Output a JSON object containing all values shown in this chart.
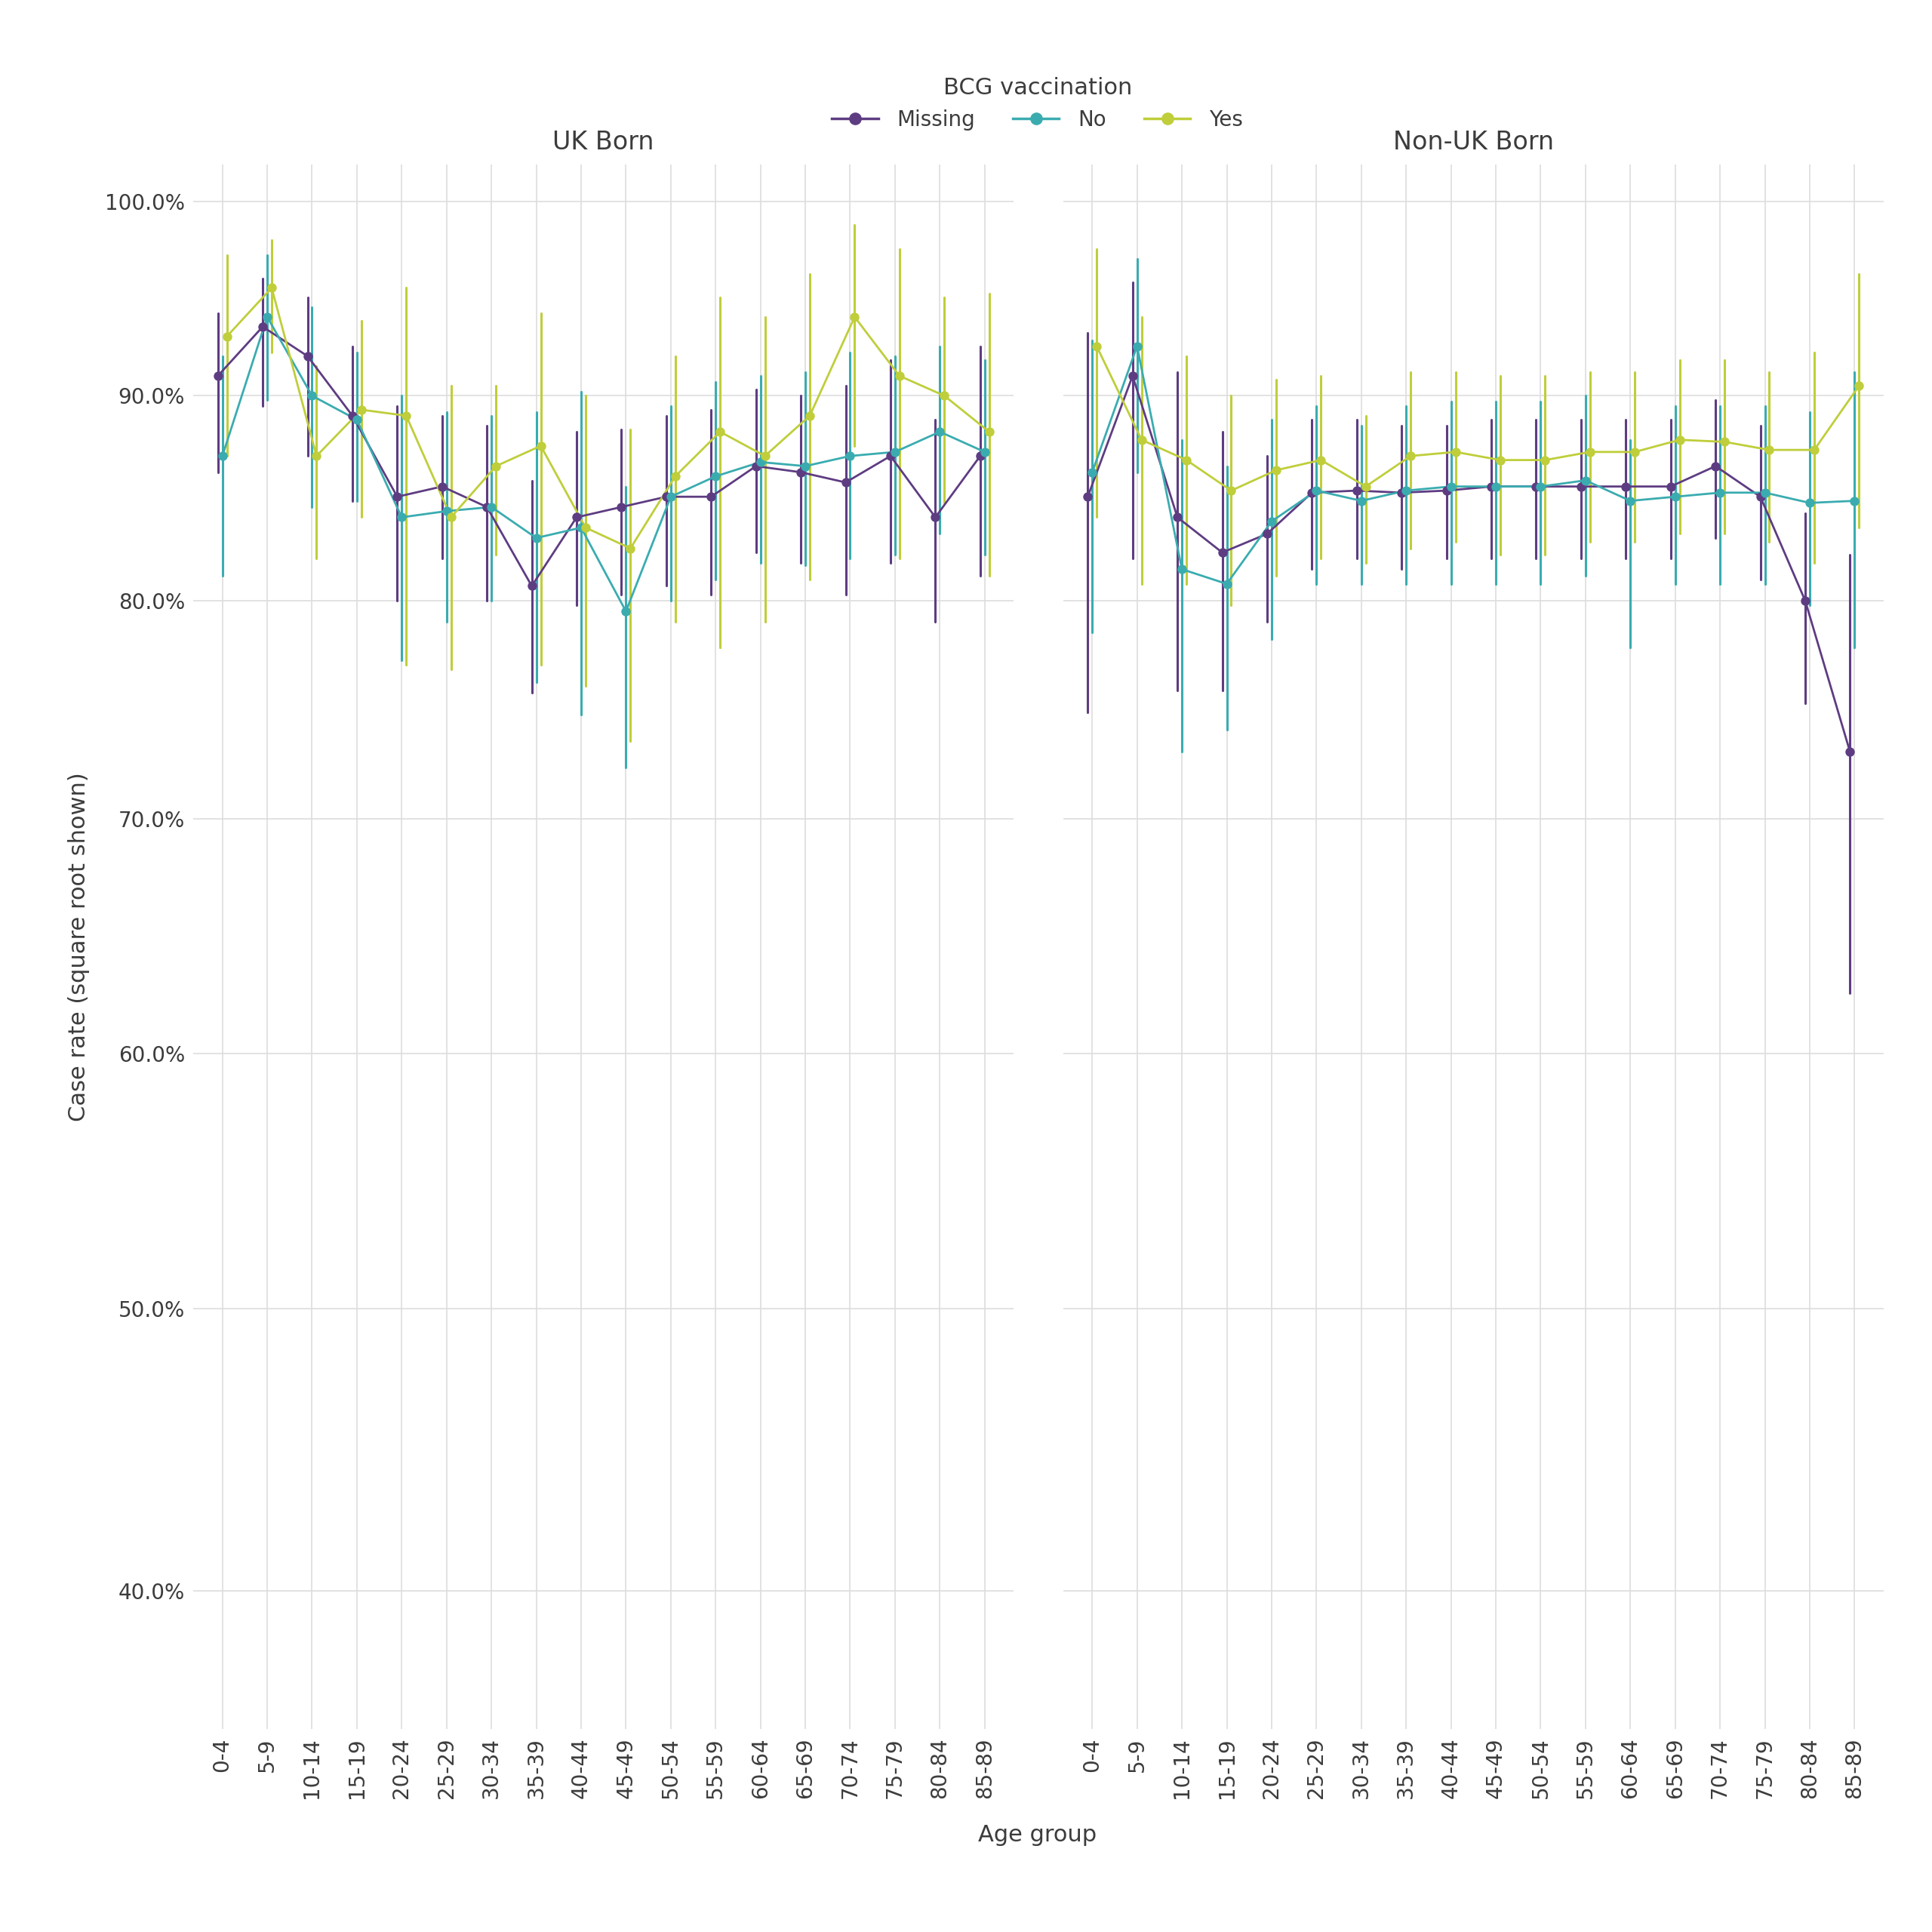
{
  "age_groups": [
    "0-4",
    "5-9",
    "10-14",
    "15-19",
    "20-24",
    "25-29",
    "30-34",
    "35-39",
    "40-44",
    "45-49",
    "50-54",
    "55-59",
    "60-64",
    "65-69",
    "70-74",
    "75-79",
    "80-84",
    "85-89"
  ],
  "panels": [
    "UK Born",
    "Non-UK Born"
  ],
  "colors": {
    "Missing": "#5E3C82",
    "No": "#3AACB0",
    "Yes": "#BFCE3A"
  },
  "UK Born": {
    "Missing": {
      "est": [
        0.91,
        0.935,
        0.92,
        0.89,
        0.85,
        0.855,
        0.845,
        0.807,
        0.84,
        0.845,
        0.85,
        0.85,
        0.865,
        0.862,
        0.857,
        0.87,
        0.84,
        0.87
      ],
      "lo": [
        0.862,
        0.895,
        0.87,
        0.848,
        0.8,
        0.82,
        0.8,
        0.757,
        0.798,
        0.803,
        0.807,
        0.803,
        0.823,
        0.818,
        0.803,
        0.818,
        0.79,
        0.812
      ],
      "hi": [
        0.942,
        0.96,
        0.95,
        0.925,
        0.895,
        0.89,
        0.885,
        0.858,
        0.882,
        0.883,
        0.89,
        0.893,
        0.903,
        0.9,
        0.905,
        0.918,
        0.888,
        0.925
      ]
    },
    "No": {
      "est": [
        0.87,
        0.94,
        0.9,
        0.888,
        0.84,
        0.843,
        0.845,
        0.83,
        0.835,
        0.795,
        0.85,
        0.86,
        0.867,
        0.865,
        0.87,
        0.872,
        0.882,
        0.872
      ],
      "lo": [
        0.812,
        0.898,
        0.845,
        0.848,
        0.772,
        0.79,
        0.8,
        0.762,
        0.747,
        0.723,
        0.8,
        0.81,
        0.818,
        0.817,
        0.82,
        0.822,
        0.832,
        0.822
      ],
      "hi": [
        0.92,
        0.972,
        0.945,
        0.922,
        0.9,
        0.892,
        0.89,
        0.892,
        0.902,
        0.855,
        0.895,
        0.907,
        0.91,
        0.912,
        0.922,
        0.92,
        0.925,
        0.918
      ]
    },
    "Yes": {
      "est": [
        0.93,
        0.955,
        0.87,
        0.893,
        0.89,
        0.84,
        0.865,
        0.875,
        0.835,
        0.825,
        0.86,
        0.882,
        0.87,
        0.89,
        0.94,
        0.91,
        0.9,
        0.882
      ],
      "lo": [
        0.87,
        0.922,
        0.82,
        0.84,
        0.77,
        0.768,
        0.822,
        0.77,
        0.76,
        0.735,
        0.79,
        0.778,
        0.79,
        0.81,
        0.875,
        0.82,
        0.847,
        0.812
      ],
      "hi": [
        0.972,
        0.98,
        0.915,
        0.938,
        0.955,
        0.905,
        0.905,
        0.942,
        0.9,
        0.883,
        0.92,
        0.95,
        0.94,
        0.962,
        0.988,
        0.975,
        0.95,
        0.952
      ]
    }
  },
  "Non-UK Born": {
    "Missing": {
      "est": [
        0.85,
        0.91,
        0.84,
        0.823,
        0.832,
        0.852,
        0.853,
        0.852,
        0.853,
        0.855,
        0.855,
        0.855,
        0.855,
        0.855,
        0.865,
        0.85,
        0.8,
        0.73
      ],
      "lo": [
        0.748,
        0.82,
        0.758,
        0.758,
        0.79,
        0.815,
        0.82,
        0.815,
        0.82,
        0.82,
        0.82,
        0.82,
        0.82,
        0.82,
        0.83,
        0.81,
        0.752,
        0.625
      ],
      "hi": [
        0.932,
        0.958,
        0.912,
        0.882,
        0.87,
        0.888,
        0.888,
        0.885,
        0.885,
        0.888,
        0.888,
        0.888,
        0.888,
        0.888,
        0.898,
        0.885,
        0.842,
        0.822
      ]
    },
    "No": {
      "est": [
        0.862,
        0.925,
        0.815,
        0.808,
        0.838,
        0.853,
        0.848,
        0.853,
        0.855,
        0.855,
        0.855,
        0.858,
        0.848,
        0.85,
        0.852,
        0.852,
        0.847,
        0.848
      ],
      "lo": [
        0.785,
        0.862,
        0.73,
        0.74,
        0.782,
        0.808,
        0.808,
        0.808,
        0.808,
        0.808,
        0.808,
        0.812,
        0.778,
        0.808,
        0.808,
        0.808,
        0.798,
        0.778
      ],
      "hi": [
        0.928,
        0.97,
        0.878,
        0.865,
        0.888,
        0.895,
        0.885,
        0.895,
        0.897,
        0.897,
        0.897,
        0.9,
        0.878,
        0.895,
        0.895,
        0.895,
        0.892,
        0.912
      ]
    },
    "Yes": {
      "est": [
        0.925,
        0.878,
        0.868,
        0.853,
        0.863,
        0.868,
        0.855,
        0.87,
        0.872,
        0.868,
        0.868,
        0.872,
        0.872,
        0.878,
        0.877,
        0.873,
        0.873,
        0.905
      ],
      "lo": [
        0.84,
        0.808,
        0.808,
        0.798,
        0.812,
        0.82,
        0.818,
        0.825,
        0.828,
        0.822,
        0.822,
        0.828,
        0.828,
        0.832,
        0.832,
        0.828,
        0.818,
        0.835
      ],
      "hi": [
        0.975,
        0.94,
        0.92,
        0.9,
        0.908,
        0.91,
        0.89,
        0.912,
        0.912,
        0.91,
        0.91,
        0.912,
        0.912,
        0.918,
        0.918,
        0.912,
        0.922,
        0.962
      ]
    }
  },
  "ylabel": "Case rate (square root shown)",
  "xlabel": "Age group",
  "legend_title": "BCG vaccination",
  "bg_color": "#FFFFFF",
  "panel_bg_color": "#FFFFFF",
  "grid_color": "#DDDDDD",
  "text_color": "#3C3C3C"
}
